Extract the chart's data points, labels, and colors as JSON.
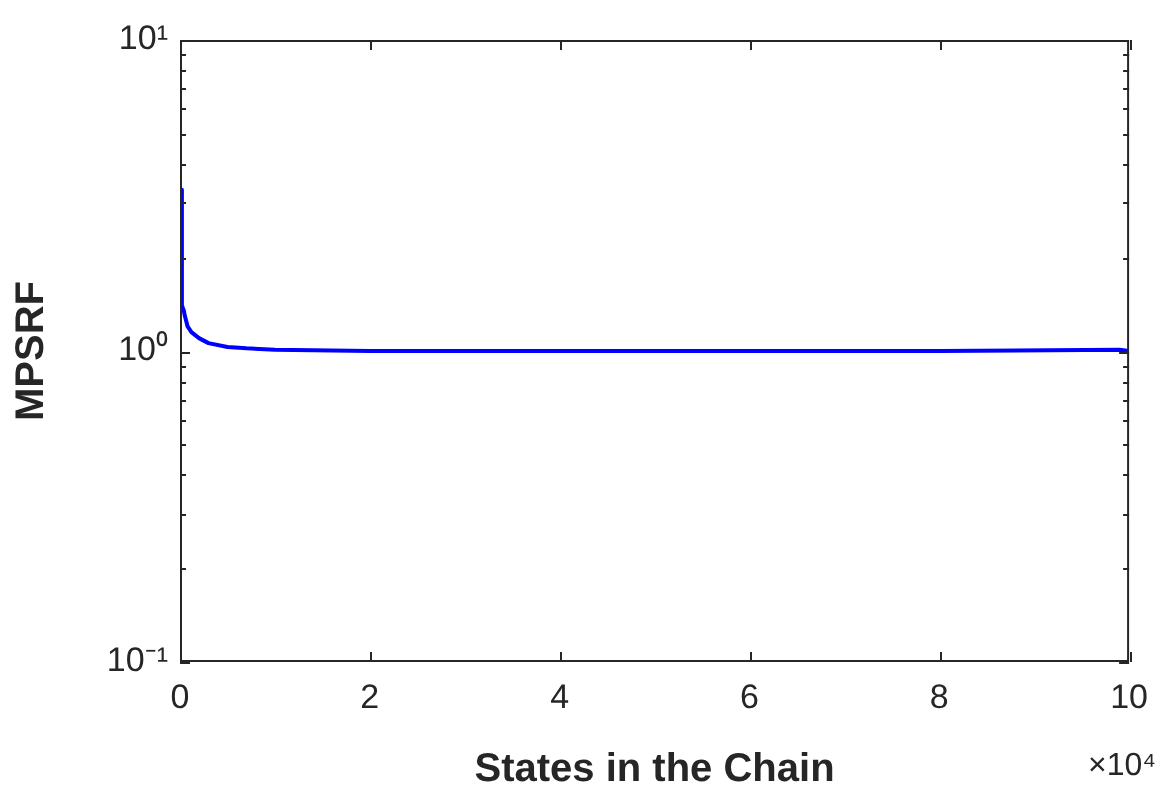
{
  "chart_data": {
    "type": "line",
    "xlabel": "States in the Chain",
    "ylabel": "MPSRF",
    "annotations": [
      "×10⁴"
    ],
    "x": [
      0,
      0.02,
      0.04,
      0.05,
      0.08,
      0.12,
      0.2,
      0.3,
      0.5,
      0.7,
      1,
      2,
      4,
      6,
      8,
      9.9,
      10
    ],
    "series": [
      {
        "color": "#0000ff",
        "values": [
          3.3,
          1.4,
          1.35,
          1.3,
          1.2,
          1.15,
          1.1,
          1.06,
          1.03,
          1.02,
          1.01,
          1.0,
          1.0,
          1.0,
          1.0,
          1.01,
          1.0
        ]
      }
    ],
    "log": "y",
    "marker": "none",
    "line_style": "solid",
    "grid": false,
    "legend": false,
    "xlim": [
      0,
      10
    ],
    "xticks": [
      0,
      2,
      4,
      6,
      8,
      10
    ],
    "ylim": [
      0.1,
      10
    ],
    "yticks": [
      {
        "value": 0.1,
        "label": "10⁻¹"
      },
      {
        "value": 0.2,
        "label": null
      },
      {
        "value": 0.3,
        "label": null
      },
      {
        "value": 0.4,
        "label": null
      },
      {
        "value": 0.5,
        "label": null
      },
      {
        "value": 0.6,
        "label": null
      },
      {
        "value": 0.7,
        "label": null
      },
      {
        "value": 0.8,
        "label": null
      },
      {
        "value": 0.9,
        "label": null
      },
      {
        "value": 1,
        "label": "10⁰"
      },
      {
        "value": 2,
        "label": null
      },
      {
        "value": 3,
        "label": null
      },
      {
        "value": 4,
        "label": null
      },
      {
        "value": 5,
        "label": null
      },
      {
        "value": 6,
        "label": null
      },
      {
        "value": 7,
        "label": null
      },
      {
        "value": 8,
        "label": null
      },
      {
        "value": 9,
        "label": null
      },
      {
        "value": 10,
        "label": "10¹"
      }
    ]
  }
}
